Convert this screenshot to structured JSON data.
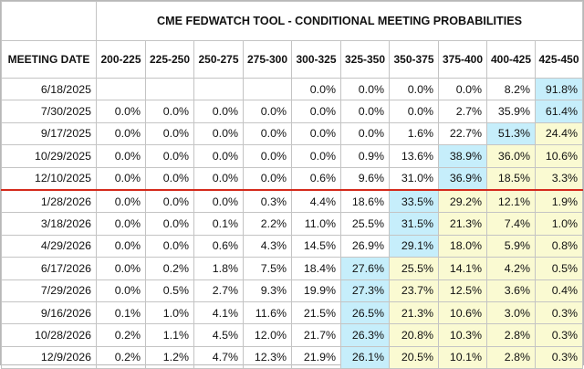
{
  "title": "CME FEDWATCH TOOL - CONDITIONAL MEETING PROBABILITIES",
  "header": {
    "first_col": "MEETING DATE",
    "columns": [
      "200-225",
      "225-250",
      "250-275",
      "275-300",
      "300-325",
      "325-350",
      "350-375",
      "375-400",
      "400-425",
      "425-450"
    ]
  },
  "colors": {
    "highlight_max": "#c6eefb",
    "highlight_shaded": "#fafad2",
    "divider": "#d42a1c"
  },
  "rows": [
    {
      "date": "6/18/2025",
      "values": [
        "",
        "",
        "",
        "",
        "0.0%",
        "0.0%",
        "0.0%",
        "0.0%",
        "8.2%",
        "91.8%"
      ],
      "shade": [
        "",
        "",
        "",
        "",
        "",
        "",
        "",
        "",
        "",
        "b"
      ]
    },
    {
      "date": "7/30/2025",
      "values": [
        "0.0%",
        "0.0%",
        "0.0%",
        "0.0%",
        "0.0%",
        "0.0%",
        "0.0%",
        "2.7%",
        "35.9%",
        "61.4%"
      ],
      "shade": [
        "",
        "",
        "",
        "",
        "",
        "",
        "",
        "",
        "",
        "b"
      ]
    },
    {
      "date": "9/17/2025",
      "values": [
        "0.0%",
        "0.0%",
        "0.0%",
        "0.0%",
        "0.0%",
        "0.0%",
        "1.6%",
        "22.7%",
        "51.3%",
        "24.4%"
      ],
      "shade": [
        "",
        "",
        "",
        "",
        "",
        "",
        "",
        "",
        "b",
        "y"
      ]
    },
    {
      "date": "10/29/2025",
      "values": [
        "0.0%",
        "0.0%",
        "0.0%",
        "0.0%",
        "0.0%",
        "0.9%",
        "13.6%",
        "38.9%",
        "36.0%",
        "10.6%"
      ],
      "shade": [
        "",
        "",
        "",
        "",
        "",
        "",
        "",
        "b",
        "y",
        "y"
      ]
    },
    {
      "date": "12/10/2025",
      "values": [
        "0.0%",
        "0.0%",
        "0.0%",
        "0.0%",
        "0.6%",
        "9.6%",
        "31.0%",
        "36.9%",
        "18.5%",
        "3.3%"
      ],
      "shade": [
        "",
        "",
        "",
        "",
        "",
        "",
        "",
        "b",
        "y",
        "y"
      ]
    },
    {
      "date": "1/28/2026",
      "values": [
        "0.0%",
        "0.0%",
        "0.0%",
        "0.3%",
        "4.4%",
        "18.6%",
        "33.5%",
        "29.2%",
        "12.1%",
        "1.9%"
      ],
      "shade": [
        "",
        "",
        "",
        "",
        "",
        "",
        "b",
        "y",
        "y",
        "y"
      ]
    },
    {
      "date": "3/18/2026",
      "values": [
        "0.0%",
        "0.0%",
        "0.1%",
        "2.2%",
        "11.0%",
        "25.5%",
        "31.5%",
        "21.3%",
        "7.4%",
        "1.0%"
      ],
      "shade": [
        "",
        "",
        "",
        "",
        "",
        "",
        "b",
        "y",
        "y",
        "y"
      ]
    },
    {
      "date": "4/29/2026",
      "values": [
        "0.0%",
        "0.0%",
        "0.6%",
        "4.3%",
        "14.5%",
        "26.9%",
        "29.1%",
        "18.0%",
        "5.9%",
        "0.8%"
      ],
      "shade": [
        "",
        "",
        "",
        "",
        "",
        "",
        "b",
        "y",
        "y",
        "y"
      ]
    },
    {
      "date": "6/17/2026",
      "values": [
        "0.0%",
        "0.2%",
        "1.8%",
        "7.5%",
        "18.4%",
        "27.6%",
        "25.5%",
        "14.1%",
        "4.2%",
        "0.5%"
      ],
      "shade": [
        "",
        "",
        "",
        "",
        "",
        "b",
        "y",
        "y",
        "y",
        "y"
      ]
    },
    {
      "date": "7/29/2026",
      "values": [
        "0.0%",
        "0.5%",
        "2.7%",
        "9.3%",
        "19.9%",
        "27.3%",
        "23.7%",
        "12.5%",
        "3.6%",
        "0.4%"
      ],
      "shade": [
        "",
        "",
        "",
        "",
        "",
        "b",
        "y",
        "y",
        "y",
        "y"
      ]
    },
    {
      "date": "9/16/2026",
      "values": [
        "0.1%",
        "1.0%",
        "4.1%",
        "11.6%",
        "21.5%",
        "26.5%",
        "21.3%",
        "10.6%",
        "3.0%",
        "0.3%"
      ],
      "shade": [
        "",
        "",
        "",
        "",
        "",
        "b",
        "y",
        "y",
        "y",
        "y"
      ]
    },
    {
      "date": "10/28/2026",
      "values": [
        "0.2%",
        "1.1%",
        "4.5%",
        "12.0%",
        "21.7%",
        "26.3%",
        "20.8%",
        "10.3%",
        "2.8%",
        "0.3%"
      ],
      "shade": [
        "",
        "",
        "",
        "",
        "",
        "b",
        "y",
        "y",
        "y",
        "y"
      ]
    },
    {
      "date": "12/9/2026",
      "values": [
        "0.2%",
        "1.2%",
        "4.7%",
        "12.3%",
        "21.9%",
        "26.1%",
        "20.5%",
        "10.1%",
        "2.8%",
        "0.3%"
      ],
      "shade": [
        "",
        "",
        "",
        "",
        "",
        "b",
        "y",
        "y",
        "y",
        "y"
      ]
    }
  ],
  "divider_after_row": 4
}
